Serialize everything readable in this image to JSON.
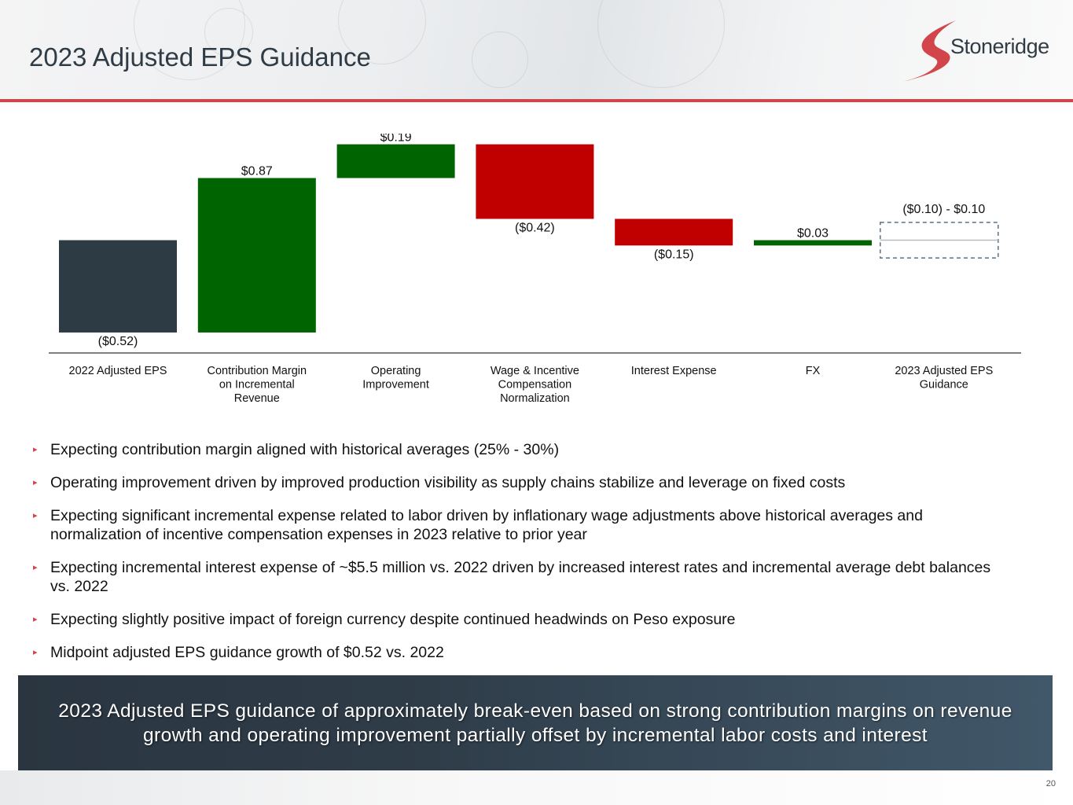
{
  "header": {
    "title": "2023 Adjusted EPS Guidance",
    "logo_text": "Stoneridge",
    "accent_color": "#d2454a"
  },
  "chart_data": {
    "type": "bar",
    "subtype": "waterfall",
    "categories": [
      "2022 Adjusted EPS",
      "Contribution Margin on Incremental Revenue",
      "Operating Improvement",
      "Wage & Incentive Compensation Normalization",
      "Interest Expense",
      "FX",
      "2023 Adjusted EPS Guidance"
    ],
    "category_lines": [
      [
        "2022 Adjusted EPS"
      ],
      [
        "Contribution Margin",
        "on Incremental",
        "Revenue"
      ],
      [
        "Operating",
        "Improvement"
      ],
      [
        "Wage & Incentive",
        "Compensation",
        "Normalization"
      ],
      [
        "Interest Expense"
      ],
      [
        "FX"
      ],
      [
        "2023 Adjusted EPS",
        "Guidance"
      ]
    ],
    "values": [
      -0.52,
      0.87,
      0.19,
      -0.42,
      -0.15,
      0.03,
      0.0
    ],
    "data_labels": [
      "($0.52)",
      "$0.87",
      "$0.19",
      "($0.42)",
      "($0.15)",
      "$0.03",
      "($0.10) - $0.10"
    ],
    "guidance_range": [
      -0.1,
      0.1
    ],
    "colors": {
      "base": "#2d3b45",
      "increase": "#006400",
      "decrease": "#c00000",
      "guidance_border": "#5b7087",
      "midline": "#b7bcc1",
      "axis": "#555555"
    },
    "ylim": [
      -0.56,
      0.6
    ],
    "grid": false,
    "legend": "none",
    "title": "",
    "xlabel": "",
    "ylabel": ""
  },
  "bullets": [
    "Expecting contribution margin aligned with historical averages (25% - 30%)",
    "Operating improvement driven by improved production visibility as supply chains stabilize and leverage on fixed costs",
    "Expecting significant incremental expense related to labor driven by inflationary wage adjustments above historical averages and normalization of incentive compensation expenses in 2023 relative to prior year",
    "Expecting incremental interest expense of ~$5.5 million vs. 2022 driven by increased interest rates and incremental average debt balances vs. 2022",
    "Expecting slightly positive impact of foreign currency despite continued headwinds on Peso exposure",
    "Midpoint adjusted EPS guidance growth of $0.52 vs. 2022"
  ],
  "banner": {
    "text": "2023 Adjusted EPS guidance of approximately break-even based on strong contribution margins on revenue growth and operating improvement partially offset by incremental labor costs and interest"
  },
  "footer": {
    "page_number": "20"
  }
}
